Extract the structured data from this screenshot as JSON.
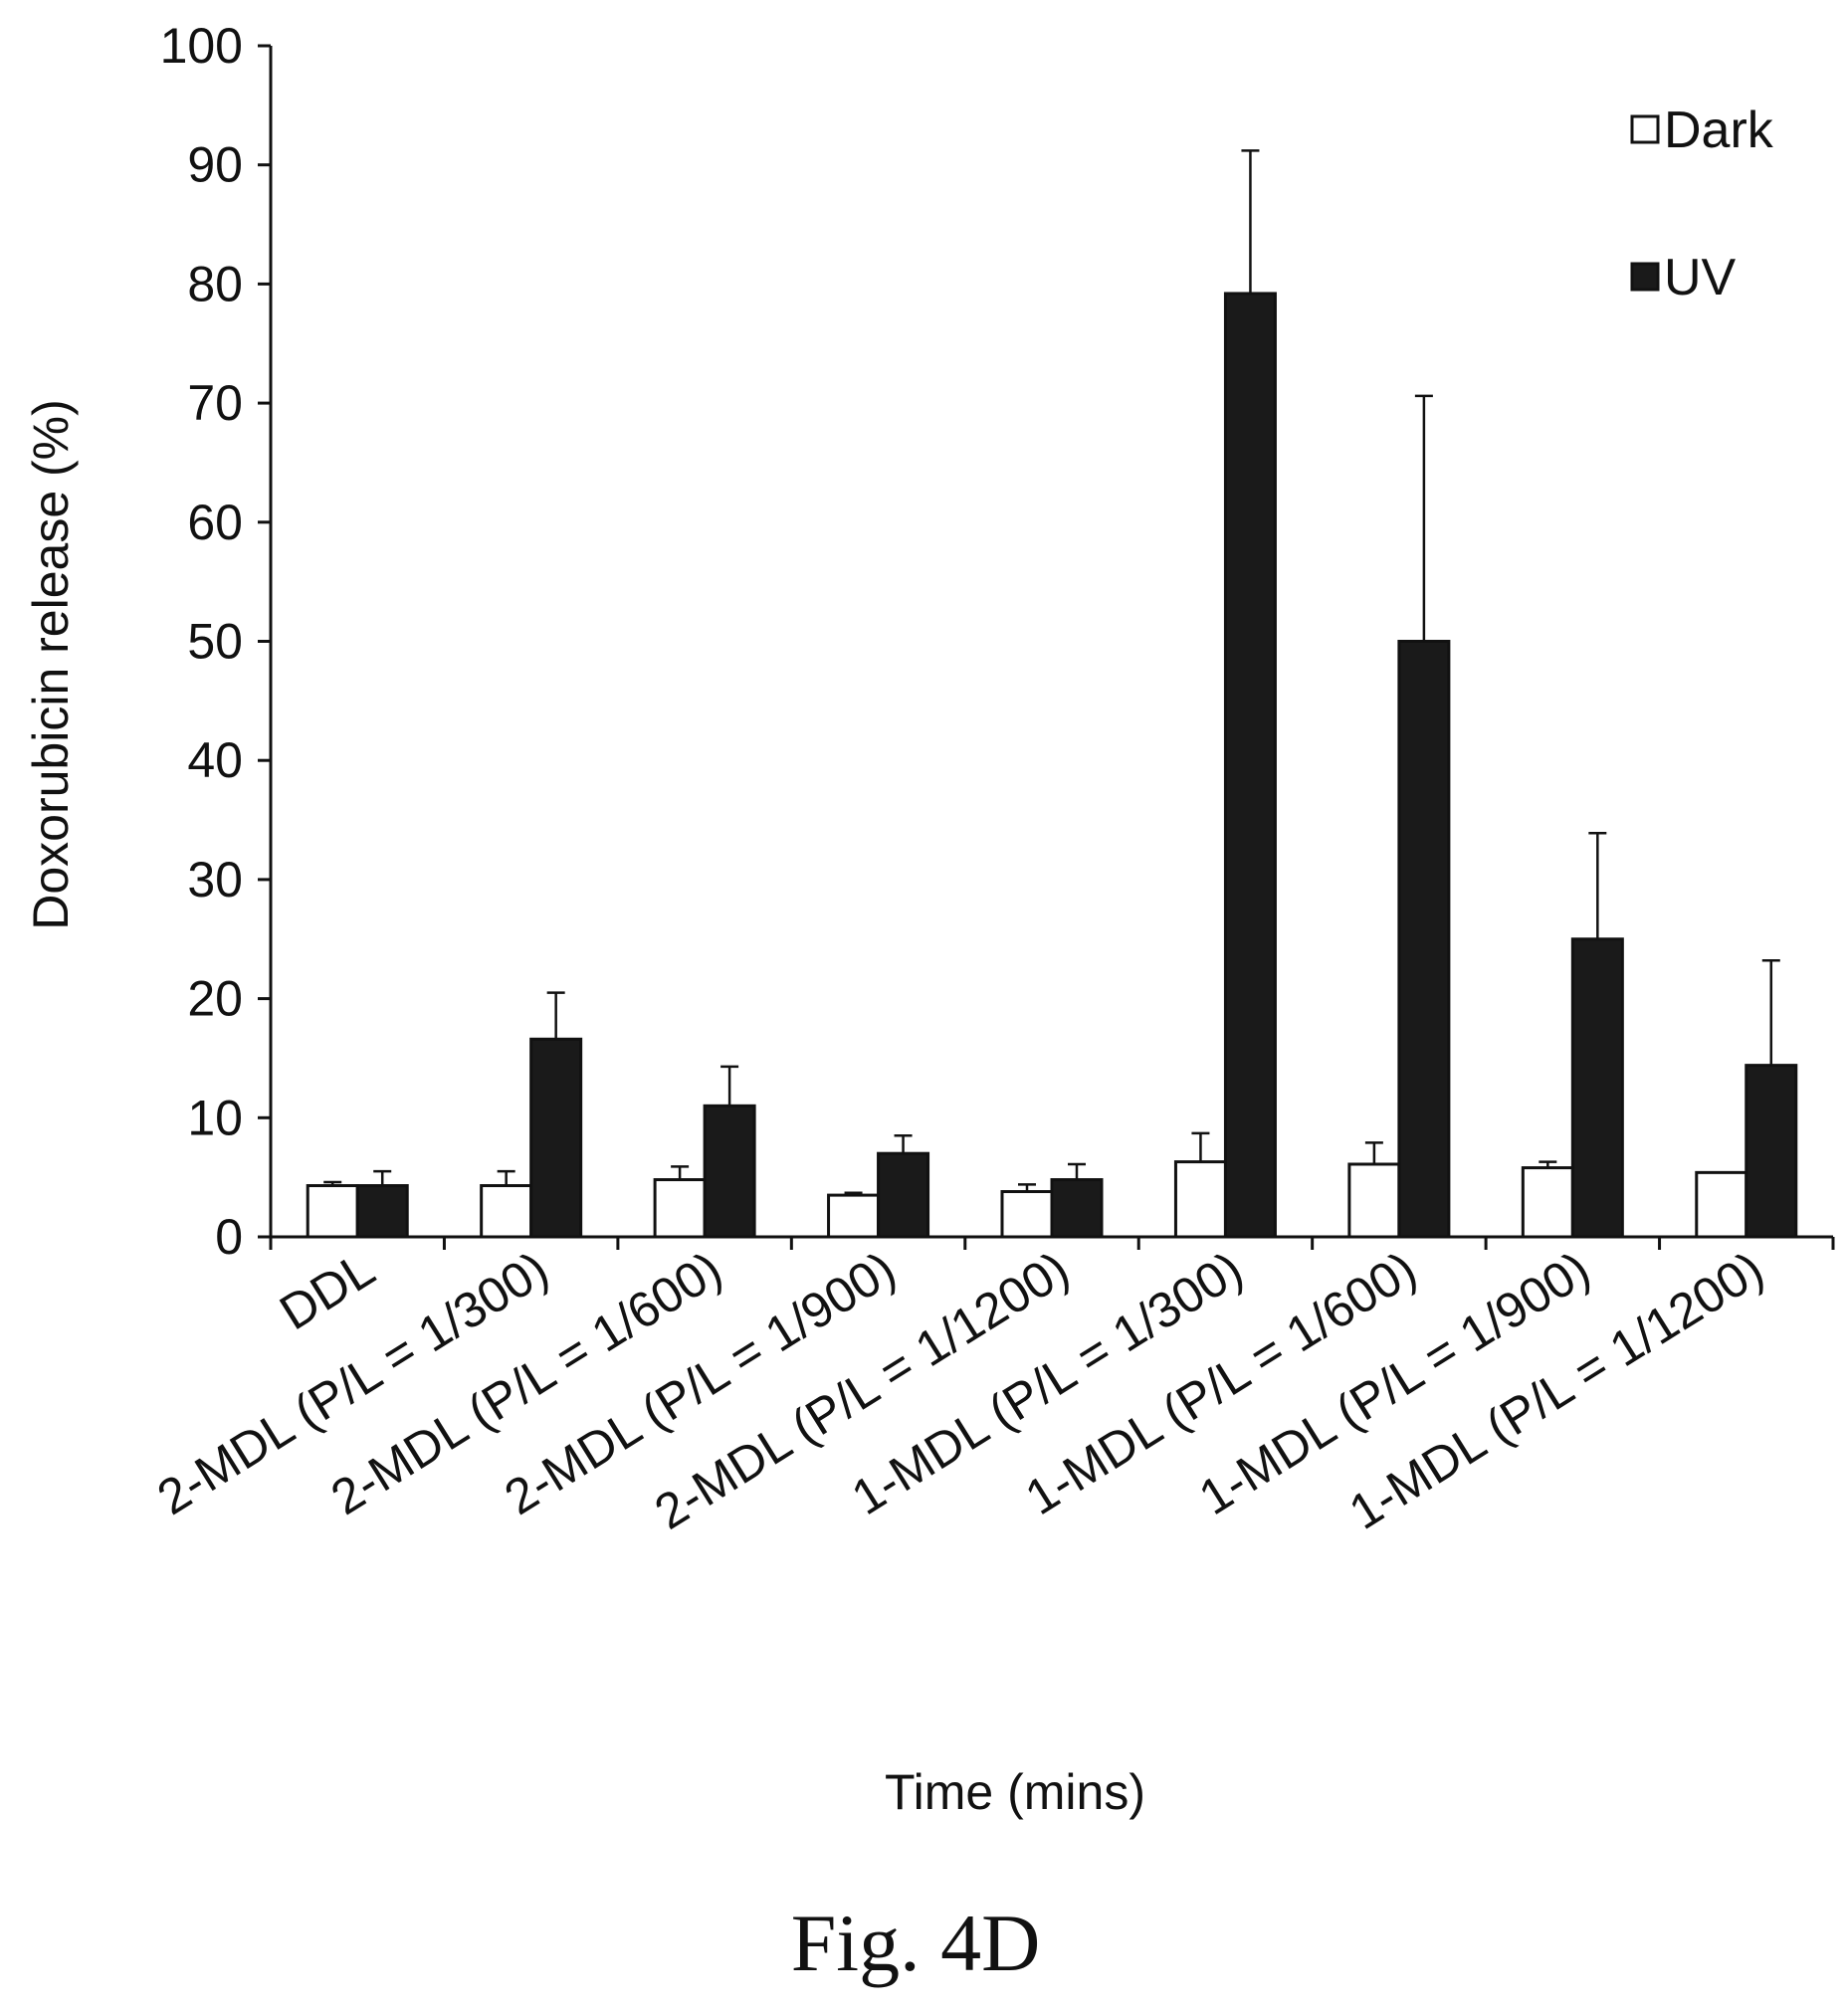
{
  "chart_data": {
    "type": "bar",
    "title": "",
    "xlabel": "Time (mins)",
    "ylabel": "Doxorubicin release (%)",
    "ylim": [
      0,
      100
    ],
    "yticks": [
      0,
      10,
      20,
      30,
      40,
      50,
      60,
      70,
      80,
      90,
      100
    ],
    "categories": [
      "DDL",
      "2-MDL (P/L = 1/300)",
      "2-MDL (P/L = 1/600)",
      "2-MDL (P/L = 1/900)",
      "2-MDL (P/L = 1/1200)",
      "1-MDL (P/L = 1/300)",
      "1-MDL (P/L = 1/600)",
      "1-MDL (P/L = 1/900)",
      "1-MDL (P/L = 1/1200)"
    ],
    "series": [
      {
        "name": "Dark",
        "color": "#ffffff",
        "values": [
          4.3,
          4.3,
          4.8,
          3.5,
          3.8,
          6.3,
          6.1,
          5.8,
          5.4
        ],
        "errors": [
          0.3,
          1.2,
          1.1,
          0.2,
          0.6,
          2.4,
          1.8,
          0.5,
          0.0
        ]
      },
      {
        "name": "UV",
        "color": "#1a1a1a",
        "values": [
          4.3,
          16.6,
          11.0,
          7.0,
          4.8,
          79.2,
          50.0,
          25.0,
          14.4
        ],
        "errors": [
          1.2,
          3.9,
          3.3,
          1.5,
          1.3,
          12.0,
          20.6,
          8.9,
          8.8
        ]
      }
    ],
    "legend_position": "top-right",
    "grid": false
  },
  "caption": "Fig. 4D"
}
